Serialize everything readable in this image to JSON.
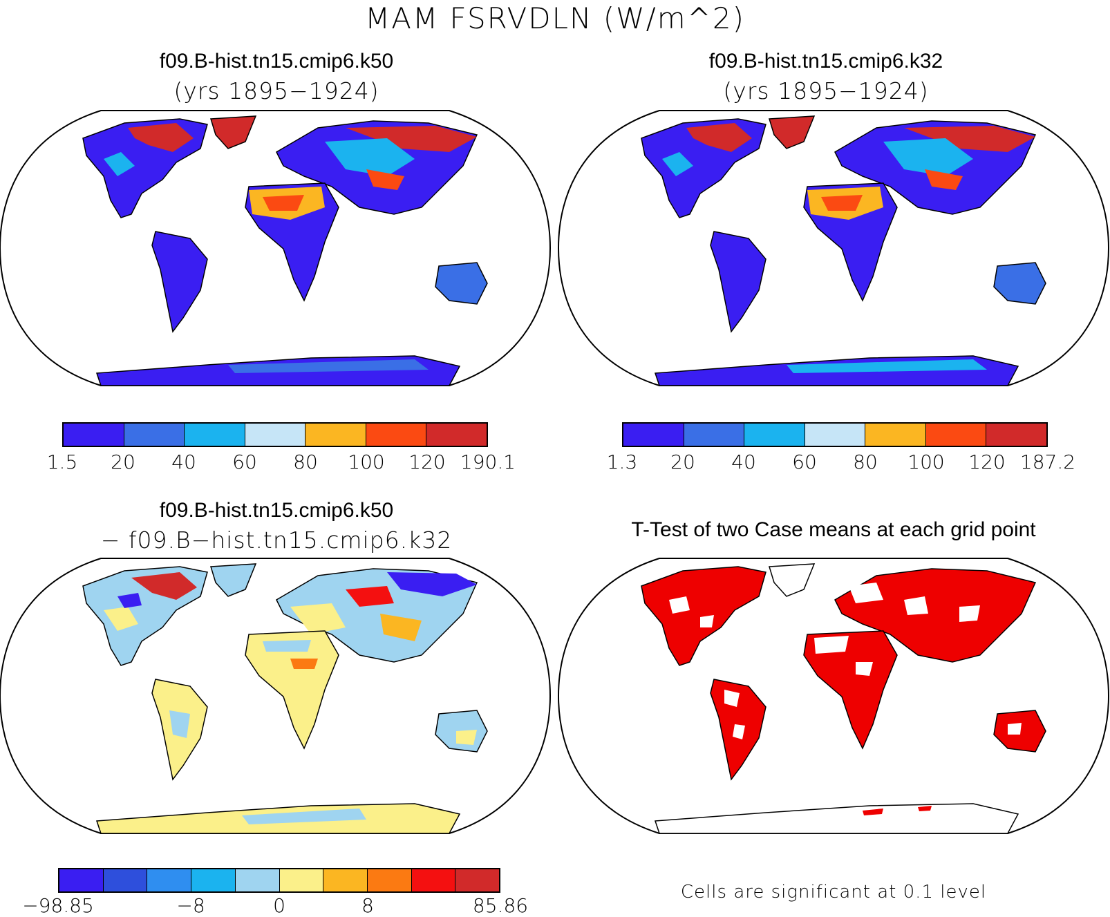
{
  "figure": {
    "title": "MAM FSRVDLN (W/m^2)"
  },
  "panels": {
    "case1": {
      "title": "f09.B-hist.tn15.cmip6.k50",
      "subtitle": "(yrs 1895−1924)",
      "colorbar": {
        "colors": [
          "#3a1ef2",
          "#3a6fe6",
          "#1bb3ef",
          "#c6e5f7",
          "#fbb622",
          "#fb4a12",
          "#d12a2a"
        ],
        "labels": [
          "1.5",
          "20",
          "40",
          "60",
          "80",
          "100",
          "120",
          "190.1"
        ]
      }
    },
    "case2": {
      "title": "f09.B-hist.tn15.cmip6.k32",
      "subtitle": "(yrs 1895−1924)",
      "colorbar": {
        "colors": [
          "#3a1ef2",
          "#3a6fe6",
          "#1bb3ef",
          "#c6e5f7",
          "#fbb622",
          "#fb4a12",
          "#d12a2a"
        ],
        "labels": [
          "1.3",
          "20",
          "40",
          "60",
          "80",
          "100",
          "120",
          "187.2"
        ]
      }
    },
    "diff": {
      "title": "f09.B-hist.tn15.cmip6.k50",
      "subtitle": "− f09.B−hist.tn15.cmip6.k32",
      "colorbar": {
        "colors": [
          "#3a1ef2",
          "#2e4fdc",
          "#2f8ef0",
          "#1bb3ef",
          "#9fd4f0",
          "#fbf08a",
          "#fbb622",
          "#fb7a12",
          "#f41010",
          "#d12a2a"
        ],
        "labels": [
          "−98.85",
          "−8",
          "0",
          "8",
          "85.86"
        ]
      }
    },
    "ttest": {
      "title": "T-Test of two Case means at each grid point",
      "note": "Cells are significant at 0.1 level",
      "sig_color": "#ee0000"
    }
  }
}
